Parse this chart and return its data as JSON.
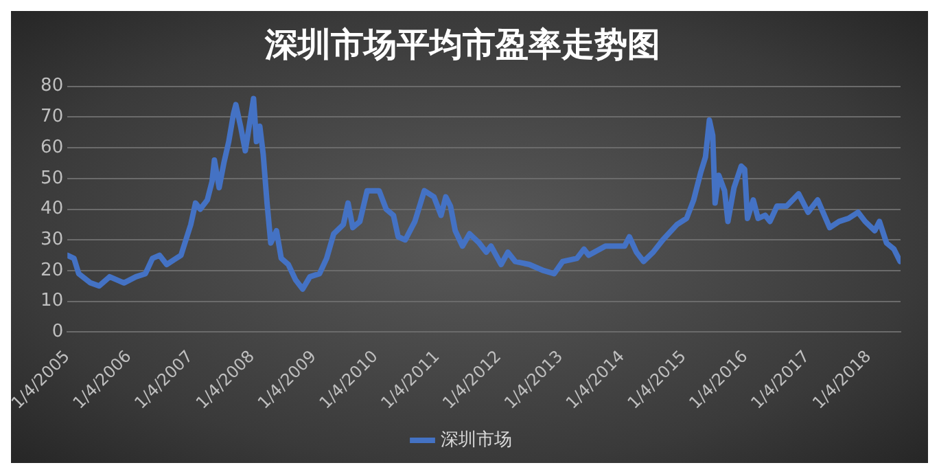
{
  "chart_data": {
    "type": "line",
    "title": "深圳市场平均市盈率走势图",
    "x": [
      "2005-01-04",
      "2005-02-12",
      "2005-03-12",
      "2005-05-21",
      "2005-07-11",
      "2005-09-11",
      "2005-12-05",
      "2006-02-14",
      "2006-04-11",
      "2006-05-23",
      "2006-07-04",
      "2006-08-15",
      "2006-11-08",
      "2007-01-05",
      "2007-02-02",
      "2007-03-02",
      "2007-04-13",
      "2007-05-11",
      "2007-05-25",
      "2007-06-22",
      "2007-07-20",
      "2007-08-18",
      "2007-09-15",
      "2007-09-29",
      "2007-10-27",
      "2007-11-24",
      "2007-12-23",
      "2008-01-12",
      "2008-01-29",
      "2008-02-18",
      "2008-03-09",
      "2008-04-01",
      "2008-04-23",
      "2008-05-27",
      "2008-06-24",
      "2008-08-05",
      "2008-09-17",
      "2008-10-29",
      "2008-12-11",
      "2009-02-06",
      "2009-03-20",
      "2009-05-01",
      "2009-06-27",
      "2009-07-25",
      "2009-08-22",
      "2009-10-03",
      "2009-11-15",
      "2009-12-28",
      "2010-01-25",
      "2010-03-08",
      "2010-04-20",
      "2010-05-18",
      "2010-06-29",
      "2010-08-25",
      "2010-10-20",
      "2010-12-16",
      "2011-01-27",
      "2011-02-24",
      "2011-03-24",
      "2011-04-21",
      "2011-06-03",
      "2011-07-15",
      "2011-09-10",
      "2011-10-22",
      "2011-11-19",
      "2012-01-18",
      "2012-02-27",
      "2012-04-10",
      "2012-07-03",
      "2012-09-26",
      "2012-11-27",
      "2013-01-17",
      "2013-04-11",
      "2013-05-23",
      "2013-06-20",
      "2013-09-27",
      "2014-01-19",
      "2014-02-16",
      "2014-03-30",
      "2014-05-11",
      "2014-07-07",
      "2014-09-02",
      "2014-11-25",
      "2015-01-21",
      "2015-03-04",
      "2015-04-15",
      "2015-05-13",
      "2015-06-05",
      "2015-06-25",
      "2015-07-09",
      "2015-07-31",
      "2015-09-03",
      "2015-09-23",
      "2015-10-29",
      "2015-12-11",
      "2015-12-31",
      "2016-01-17",
      "2016-02-20",
      "2016-03-20",
      "2016-05-01",
      "2016-05-29",
      "2016-07-10",
      "2016-09-05",
      "2016-11-15",
      "2017-01-10",
      "2017-03-08",
      "2017-05-18",
      "2017-07-13",
      "2017-09-07",
      "2017-11-02",
      "2017-12-14",
      "2018-02-09",
      "2018-03-09",
      "2018-04-20",
      "2018-06-03",
      "2018-07-09"
    ],
    "series": [
      {
        "name": "深圳市场",
        "color": "#4472c4",
        "values": [
          25,
          24,
          19,
          16,
          15,
          18,
          16,
          18,
          19,
          24,
          25,
          22,
          25,
          35,
          42,
          40,
          43,
          49,
          56,
          47,
          55,
          62,
          71,
          74,
          67,
          59,
          69,
          76,
          62,
          67,
          58,
          42,
          29,
          33,
          24,
          22,
          17,
          14,
          18,
          19,
          24,
          32,
          35,
          42,
          34,
          36,
          46,
          46,
          46,
          40,
          38,
          31,
          30,
          36,
          46,
          44,
          38,
          44,
          41,
          33,
          28,
          32,
          29,
          26,
          28,
          22,
          26,
          23,
          22,
          20,
          19,
          23,
          24,
          27,
          25,
          28,
          28,
          31,
          26,
          23,
          26,
          30,
          35,
          37,
          43,
          52,
          57,
          69,
          64,
          42,
          51,
          46,
          36,
          47,
          54,
          53,
          37,
          43,
          37,
          38,
          36,
          41,
          41,
          45,
          39,
          43,
          34,
          36,
          37,
          39,
          36,
          33,
          36,
          29,
          27,
          23
        ]
      }
    ],
    "xlim": [
      "2005-01-04",
      "2018-07-12"
    ],
    "xticks": [
      {
        "value": "2005-01-04",
        "label": "1/4/2005"
      },
      {
        "value": "2006-01-04",
        "label": "1/4/2006"
      },
      {
        "value": "2007-01-04",
        "label": "1/4/2007"
      },
      {
        "value": "2008-01-04",
        "label": "1/4/2008"
      },
      {
        "value": "2009-01-04",
        "label": "1/4/2009"
      },
      {
        "value": "2010-01-04",
        "label": "1/4/2010"
      },
      {
        "value": "2011-01-04",
        "label": "1/4/2011"
      },
      {
        "value": "2012-01-04",
        "label": "1/4/2012"
      },
      {
        "value": "2013-01-04",
        "label": "1/4/2013"
      },
      {
        "value": "2014-01-04",
        "label": "1/4/2014"
      },
      {
        "value": "2015-01-04",
        "label": "1/4/2015"
      },
      {
        "value": "2016-01-04",
        "label": "1/4/2016"
      },
      {
        "value": "2017-01-04",
        "label": "1/4/2017"
      },
      {
        "value": "2018-01-04",
        "label": "1/4/2018"
      }
    ],
    "ylim": [
      0,
      80
    ],
    "yticks": [
      0,
      10,
      20,
      30,
      40,
      50,
      60,
      70,
      80
    ],
    "grid": "y",
    "legend": "bottom",
    "marker": "none",
    "line_style": "solid"
  }
}
